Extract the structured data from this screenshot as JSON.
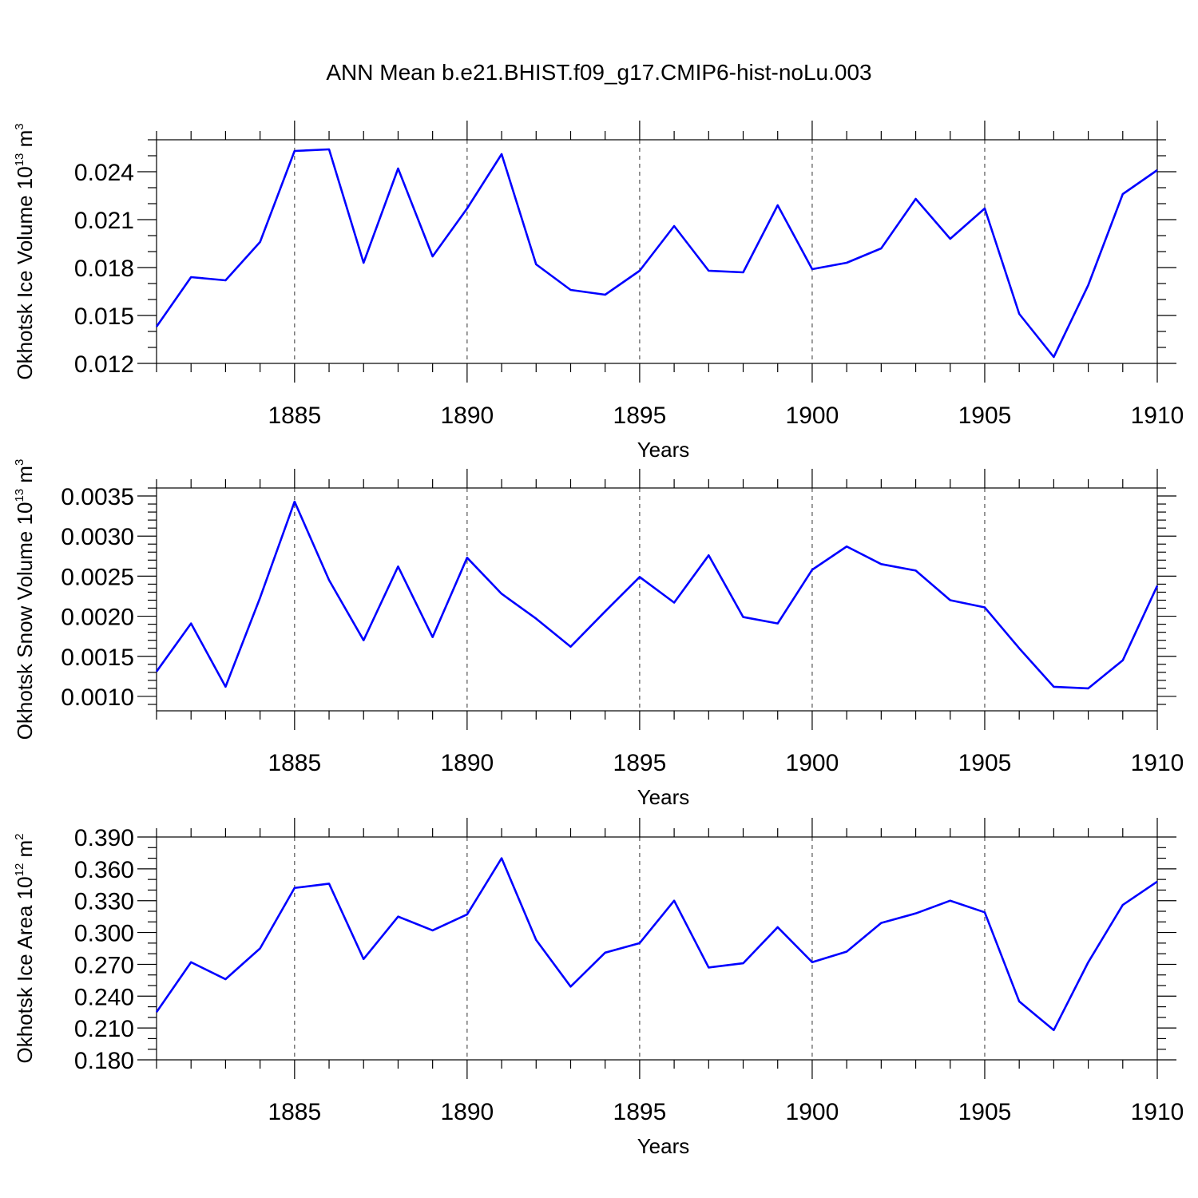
{
  "chart_data": {
    "title": "ANN Mean b.e21.BHIST.f09_g17.CMIP6-hist-noLu.003",
    "panels": [
      {
        "type": "line",
        "ylabel_main": "Okhotsk Ice Volume 10",
        "ylabel_exp": "13",
        "ylabel_unit": " m",
        "ylabel_unit_exp": "3",
        "xlabel": "Years",
        "xlim": [
          1881,
          1910
        ],
        "ylim": [
          0.012,
          0.026
        ],
        "yticks": [
          0.012,
          0.015,
          0.018,
          0.021,
          0.024
        ],
        "ytick_labels": [
          "0.012",
          "0.015",
          "0.018",
          "0.021",
          "0.024"
        ],
        "yminor_step": 0.001,
        "xticks": [
          1885,
          1890,
          1895,
          1900,
          1905,
          1910
        ],
        "xtick_labels": [
          "1885",
          "1890",
          "1895",
          "1900",
          "1905",
          "1910"
        ],
        "grid": "x-dashed",
        "x": [
          1881,
          1882,
          1883,
          1884,
          1885,
          1886,
          1887,
          1888,
          1889,
          1890,
          1891,
          1892,
          1893,
          1894,
          1895,
          1896,
          1897,
          1898,
          1899,
          1900,
          1901,
          1902,
          1903,
          1904,
          1905,
          1906,
          1907,
          1908,
          1909,
          1910
        ],
        "series": [
          {
            "values": [
              0.0143,
              0.0174,
              0.0172,
              0.0196,
              0.0253,
              0.0254,
              0.0183,
              0.0242,
              0.0187,
              0.0217,
              0.0251,
              0.0182,
              0.0166,
              0.0163,
              0.0178,
              0.0206,
              0.0178,
              0.0177,
              0.0219,
              0.0179,
              0.0183,
              0.0192,
              0.0223,
              0.0198,
              0.0217,
              0.0151,
              0.0124,
              0.0169,
              0.0226,
              0.0241
            ],
            "color": "#0000ff"
          }
        ]
      },
      {
        "type": "line",
        "ylabel_main": "Okhotsk Snow Volume 10",
        "ylabel_exp": "13",
        "ylabel_unit": " m",
        "ylabel_unit_exp": "3",
        "xlabel": "Years",
        "xlim": [
          1881,
          1910
        ],
        "ylim": [
          0.00082,
          0.0036
        ],
        "yticks": [
          0.001,
          0.0015,
          0.002,
          0.0025,
          0.003,
          0.0035
        ],
        "ytick_labels": [
          "0.0010",
          "0.0015",
          "0.0020",
          "0.0025",
          "0.0030",
          "0.0035"
        ],
        "yminor_step": 0.0001,
        "xticks": [
          1885,
          1890,
          1895,
          1900,
          1905,
          1910
        ],
        "xtick_labels": [
          "1885",
          "1890",
          "1895",
          "1900",
          "1905",
          "1910"
        ],
        "grid": "x-dashed",
        "x": [
          1881,
          1882,
          1883,
          1884,
          1885,
          1886,
          1887,
          1888,
          1889,
          1890,
          1891,
          1892,
          1893,
          1894,
          1895,
          1896,
          1897,
          1898,
          1899,
          1900,
          1901,
          1902,
          1903,
          1904,
          1905,
          1906,
          1907,
          1908,
          1909,
          1910
        ],
        "series": [
          {
            "values": [
              0.00131,
              0.00191,
              0.00112,
              0.00223,
              0.00343,
              0.00245,
              0.0017,
              0.00262,
              0.00174,
              0.00273,
              0.00228,
              0.00197,
              0.00162,
              0.00206,
              0.00249,
              0.00217,
              0.00276,
              0.00199,
              0.00191,
              0.00258,
              0.00287,
              0.00265,
              0.00257,
              0.0022,
              0.00211,
              0.0016,
              0.00112,
              0.0011,
              0.00145,
              0.00238
            ],
            "color": "#0000ff"
          }
        ]
      },
      {
        "type": "line",
        "ylabel_main": "Okhotsk Ice Area 10",
        "ylabel_exp": "12",
        "ylabel_unit": " m",
        "ylabel_unit_exp": "2",
        "xlabel": "Years",
        "xlim": [
          1881,
          1910
        ],
        "ylim": [
          0.18,
          0.39
        ],
        "yticks": [
          0.18,
          0.21,
          0.24,
          0.27,
          0.3,
          0.33,
          0.36,
          0.39
        ],
        "ytick_labels": [
          "0.180",
          "0.210",
          "0.240",
          "0.270",
          "0.300",
          "0.330",
          "0.360",
          "0.390"
        ],
        "yminor_step": 0.01,
        "xticks": [
          1885,
          1890,
          1895,
          1900,
          1905,
          1910
        ],
        "xtick_labels": [
          "1885",
          "1890",
          "1895",
          "1900",
          "1905",
          "1910"
        ],
        "grid": "x-dashed",
        "x": [
          1881,
          1882,
          1883,
          1884,
          1885,
          1886,
          1887,
          1888,
          1889,
          1890,
          1891,
          1892,
          1893,
          1894,
          1895,
          1896,
          1897,
          1898,
          1899,
          1900,
          1901,
          1902,
          1903,
          1904,
          1905,
          1906,
          1907,
          1908,
          1909,
          1910
        ],
        "series": [
          {
            "values": [
              0.225,
              0.272,
              0.256,
              0.285,
              0.342,
              0.346,
              0.275,
              0.315,
              0.302,
              0.317,
              0.37,
              0.293,
              0.249,
              0.281,
              0.29,
              0.33,
              0.267,
              0.271,
              0.305,
              0.272,
              0.282,
              0.309,
              0.318,
              0.33,
              0.319,
              0.235,
              0.208,
              0.272,
              0.326,
              0.348
            ],
            "color": "#0000ff"
          }
        ]
      }
    ]
  }
}
